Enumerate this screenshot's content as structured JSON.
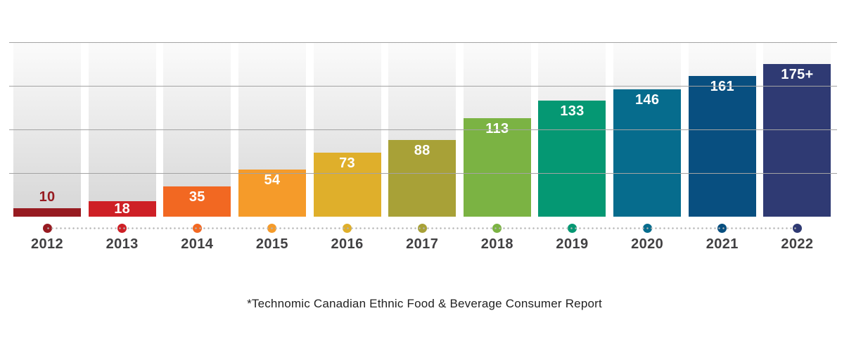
{
  "chart_data": {
    "type": "bar",
    "title": "",
    "xlabel": "",
    "ylabel": "",
    "categories": [
      "2012",
      "2013",
      "2014",
      "2015",
      "2016",
      "2017",
      "2018",
      "2019",
      "2020",
      "2021",
      "2022"
    ],
    "values": [
      10,
      18,
      35,
      54,
      73,
      88,
      113,
      133,
      146,
      161,
      175
    ],
    "value_labels": [
      "10",
      "18",
      "35",
      "54",
      "73",
      "88",
      "113",
      "133",
      "146",
      "161",
      "175+"
    ],
    "bar_colors": [
      "#971B21",
      "#CE2026",
      "#F26822",
      "#F59B2A",
      "#DFAF2B",
      "#A8A137",
      "#7BB343",
      "#059873",
      "#066C8D",
      "#084F80",
      "#2F3A73"
    ],
    "ylim": [
      0,
      200
    ],
    "gridline_values": [
      50,
      100,
      150,
      200
    ],
    "grid": true,
    "legend": false,
    "background_bars": true,
    "axis_dots": true,
    "style": {
      "gridline_color": "#a3a3a3",
      "background_bar_top": "#fbfbfb",
      "background_bar_bottom": "#d6d6d6",
      "dotted_line_color": "#b4b4b4",
      "category_label_color": "#414042",
      "value_label_color_inside": "#ffffff"
    }
  },
  "footnote": {
    "text": "*Technomic Canadian Ethnic Food & Beverage Consumer Report"
  }
}
